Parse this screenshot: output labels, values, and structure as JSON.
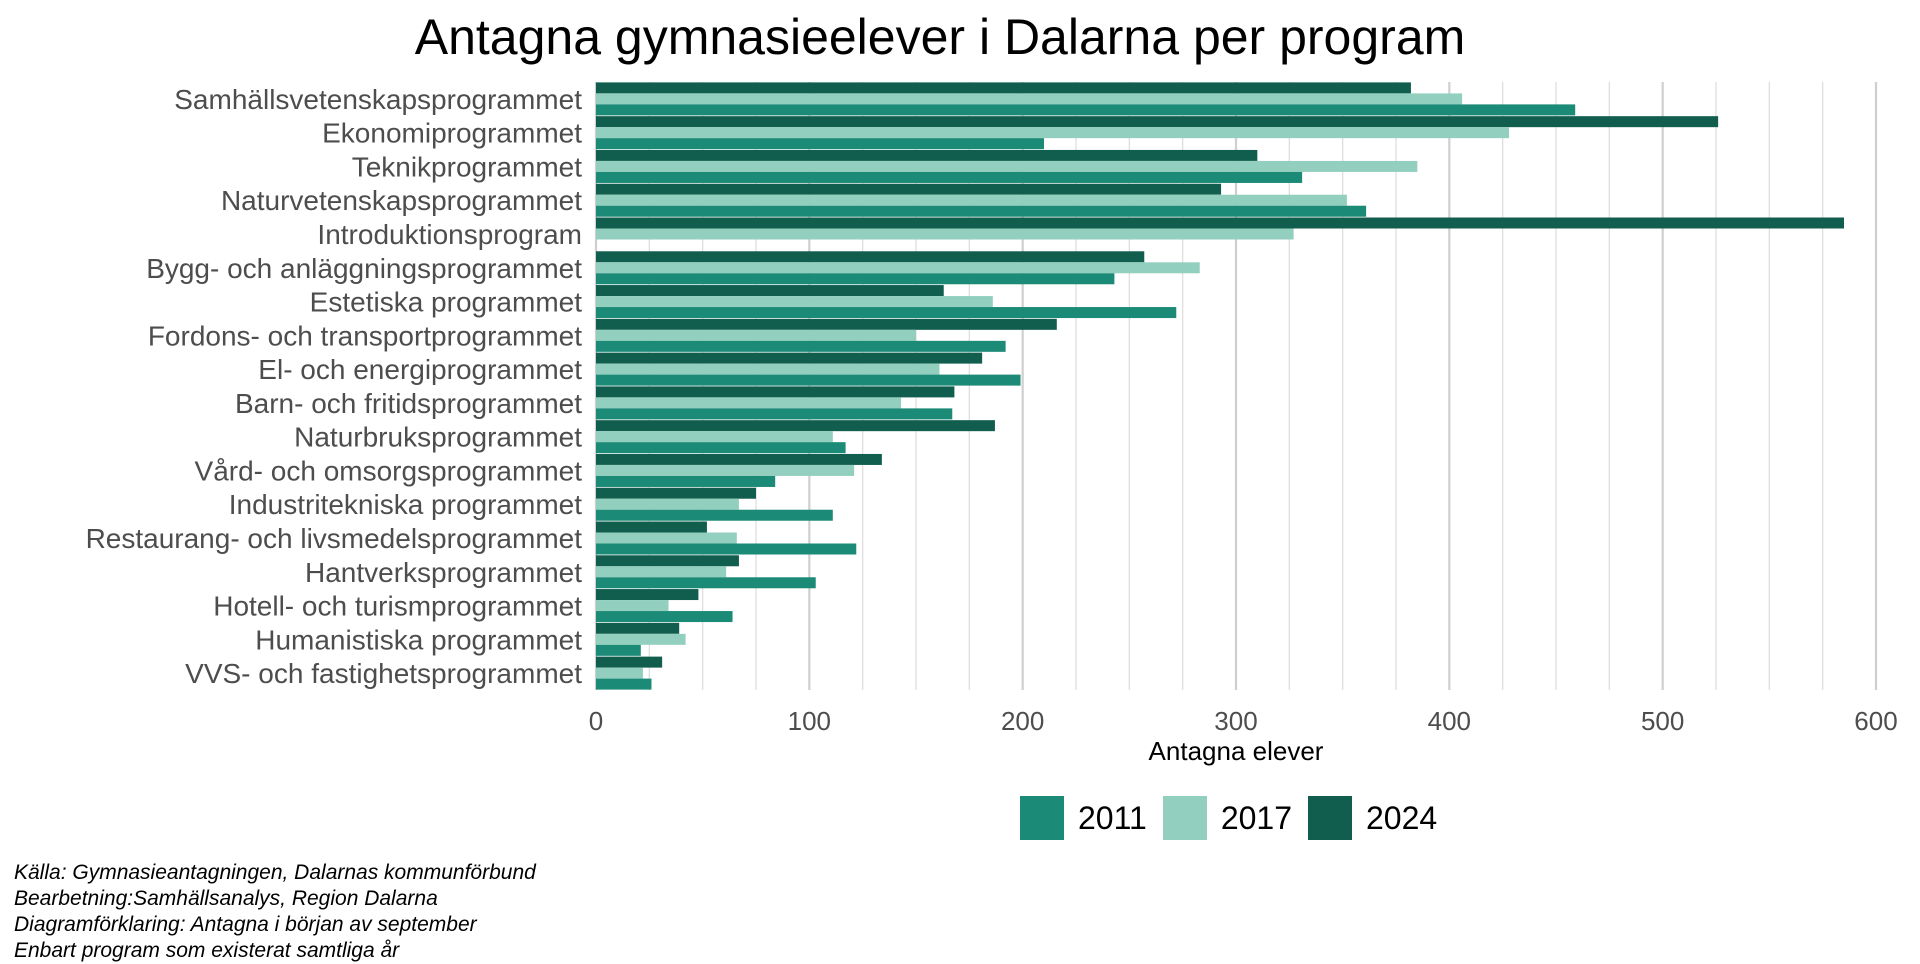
{
  "chart_data": {
    "type": "bar",
    "orientation": "horizontal",
    "title": "Antagna gymnasieelever i Dalarna per program",
    "xlabel": "Antagna elever",
    "ylabel": "",
    "xlim": [
      0,
      600
    ],
    "xticks": [
      "0",
      "100",
      "200",
      "300",
      "400",
      "500",
      "600"
    ],
    "grid": true,
    "legend_position": "bottom",
    "categories": [
      "Samhällsvetenskapsprogrammet",
      "Ekonomiprogrammet",
      "Teknikprogrammet",
      "Naturvetenskapsprogrammet",
      "Introduktionsprogram",
      "Bygg- och anläggningsprogrammet",
      "Estetiska programmet",
      "Fordons- och transportprogrammet",
      "El- och energiprogrammet",
      "Barn- och fritidsprogrammet",
      "Naturbruksprogrammet",
      "Vård- och omsorgsprogrammet",
      "Industritekniska programmet",
      "Restaurang- och livsmedelsprogrammet",
      "Hantverksprogrammet",
      "Hotell- och turismprogrammet",
      "Humanistiska programmet",
      "VVS- och fastighetsprogrammet"
    ],
    "series": [
      {
        "name": "2011",
        "color": "#1b8a76",
        "values": [
          459,
          210,
          331,
          361,
          0,
          243,
          272,
          192,
          199,
          167,
          117,
          84,
          111,
          122,
          103,
          64,
          21,
          26
        ]
      },
      {
        "name": "2017",
        "color": "#93cfbf",
        "values": [
          406,
          428,
          385,
          352,
          327,
          283,
          186,
          150,
          161,
          143,
          111,
          121,
          67,
          66,
          61,
          34,
          42,
          22
        ]
      },
      {
        "name": "2024",
        "color": "#125e4e",
        "values": [
          382,
          526,
          310,
          293,
          585,
          257,
          163,
          216,
          181,
          168,
          187,
          134,
          75,
          52,
          67,
          48,
          39,
          31
        ]
      }
    ],
    "series_order_top_to_bottom": [
      "2024",
      "2017",
      "2011"
    ],
    "caption_lines": [
      "Källa: Gymnasieantagningen, Dalarnas kommunförbund",
      "Bearbetning:Samhällsanalys, Region Dalarna",
      "Diagramförklaring: Antagna i början av september",
      "Enbart program som existerat samtliga år"
    ]
  }
}
